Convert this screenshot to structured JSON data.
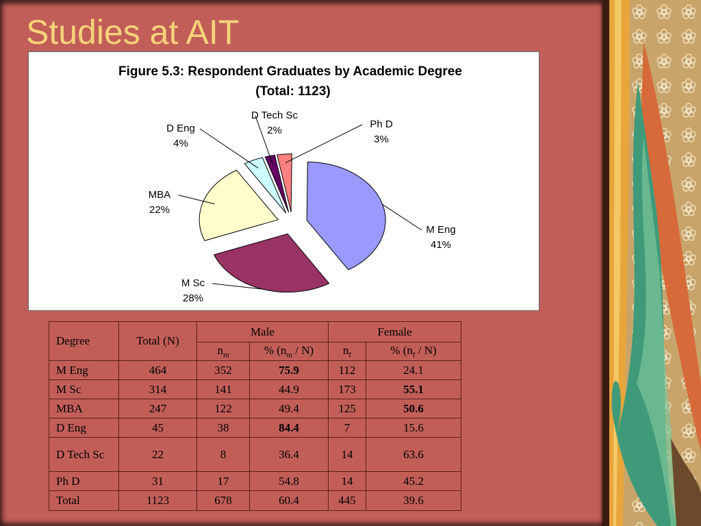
{
  "slide": {
    "title": "Studies at AIT"
  },
  "chart_data": {
    "type": "pie",
    "title": "Figure 5.3: Respondent Graduates by Academic Degree",
    "subtitle": "(Total: 1123)",
    "slices": [
      {
        "label": "M Eng",
        "percent_label": "41%",
        "value": 41,
        "color": "#9999ff"
      },
      {
        "label": "M Sc",
        "percent_label": "28%",
        "value": 28,
        "color": "#993366"
      },
      {
        "label": "MBA",
        "percent_label": "22%",
        "value": 22,
        "color": "#ffffcc"
      },
      {
        "label": "D Eng",
        "percent_label": "4%",
        "value": 4,
        "color": "#ccffff"
      },
      {
        "label": "D Tech Sc",
        "percent_label": "2%",
        "value": 2,
        "color": "#660066"
      },
      {
        "label": "Ph D",
        "percent_label": "3%",
        "value": 3,
        "color": "#ff8080"
      }
    ]
  },
  "table": {
    "headers": {
      "degree": "Degree",
      "total": "Total (N)",
      "male": "Male",
      "female": "Female",
      "n_letter": "n",
      "m_sub": "m",
      "f_sub": "f",
      "pct_prefix": "% (n",
      "pct_suffix": " / N)"
    },
    "rows": [
      {
        "degree": "M Eng",
        "total": "464",
        "nm": "352",
        "pm": "75.9",
        "nf": "112",
        "pf": "24.1"
      },
      {
        "degree": "M Sc",
        "total": "314",
        "nm": "141",
        "pm": "44.9",
        "nf": "173",
        "pf": "55.1"
      },
      {
        "degree": "MBA",
        "total": "247",
        "nm": "122",
        "pm": "49.4",
        "nf": "125",
        "pf": "50.6"
      },
      {
        "degree": "D Eng",
        "total": "45",
        "nm": "38",
        "pm": "84.4",
        "nf": "7",
        "pf": "15.6"
      },
      {
        "degree": "D Tech Sc",
        "total": "22",
        "nm": "8",
        "pm": "36.4",
        "nf": "14",
        "pf": "63.6"
      },
      {
        "degree": "Ph D",
        "total": "31",
        "nm": "17",
        "pm": "54.8",
        "nf": "14",
        "pf": "45.2"
      },
      {
        "degree": "Total",
        "total": "1123",
        "nm": "678",
        "pm": "60.4",
        "nf": "445",
        "pf": "39.6"
      }
    ]
  }
}
